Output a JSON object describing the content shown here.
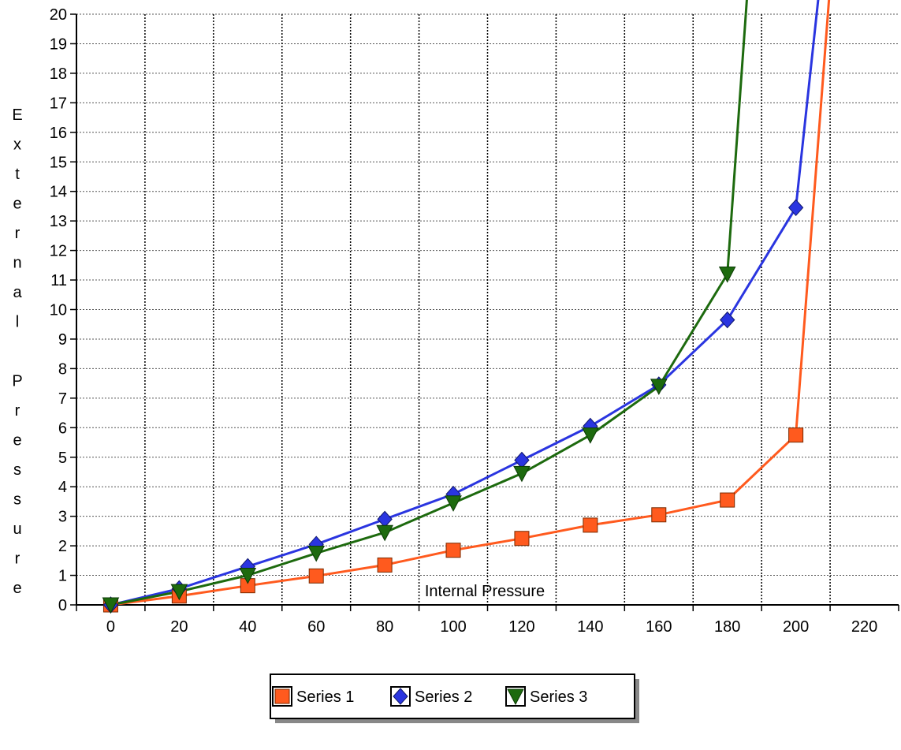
{
  "chart_data": {
    "type": "line",
    "title": "",
    "xlabel": "Internal Pressure",
    "ylabel": "External Pressure",
    "xlim": [
      -10,
      230
    ],
    "ylim": [
      0,
      20
    ],
    "xticks": [
      "0",
      "20",
      "40",
      "60",
      "80",
      "100",
      "120",
      "140",
      "160",
      "180",
      "200",
      "220"
    ],
    "yticks": [
      "0",
      "1",
      "2",
      "3",
      "4",
      "5",
      "6",
      "7",
      "8",
      "9",
      "10",
      "11",
      "12",
      "13",
      "14",
      "15",
      "16",
      "17",
      "18",
      "19",
      "20"
    ],
    "grid": true,
    "legend_position": "bottom",
    "series": [
      {
        "name": "Series 1",
        "color": "#ff5a1e",
        "marker": "square",
        "x": [
          0,
          20,
          40,
          60,
          80,
          100,
          120,
          140,
          160,
          180,
          200,
          210
        ],
        "y": [
          0,
          0.3,
          0.65,
          0.98,
          1.35,
          1.85,
          2.25,
          2.7,
          3.05,
          3.55,
          5.75,
          21
        ]
      },
      {
        "name": "Series 2",
        "color": "#2a35e0",
        "marker": "diamond",
        "x": [
          0,
          20,
          40,
          60,
          80,
          100,
          120,
          140,
          160,
          180,
          200,
          207
        ],
        "y": [
          0,
          0.55,
          1.3,
          2.05,
          2.9,
          3.75,
          4.9,
          6.05,
          7.45,
          9.65,
          13.45,
          21
        ]
      },
      {
        "name": "Series 3",
        "color": "#1d6a0e",
        "marker": "triangle-down",
        "x": [
          0,
          20,
          40,
          60,
          80,
          100,
          120,
          140,
          160,
          180,
          186
        ],
        "y": [
          0,
          0.45,
          1.0,
          1.75,
          2.45,
          3.45,
          4.45,
          5.75,
          7.4,
          11.2,
          21
        ]
      }
    ]
  }
}
